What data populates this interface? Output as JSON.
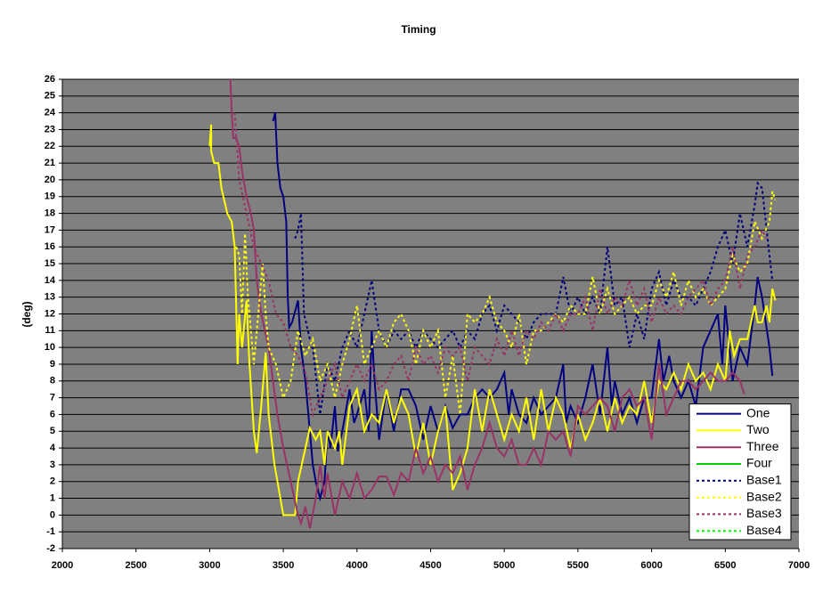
{
  "chart_data": {
    "type": "line",
    "title": "Timing",
    "ylabel": "(deg)",
    "xlim": [
      2000,
      7000
    ],
    "xticks": [
      2000,
      2500,
      3000,
      3500,
      4000,
      4500,
      5000,
      5500,
      6000,
      6500,
      7000
    ],
    "ylim": [
      -2,
      26
    ],
    "yticks": [
      -2,
      -1,
      0,
      1,
      2,
      3,
      4,
      5,
      6,
      7,
      8,
      9,
      10,
      11,
      12,
      13,
      14,
      15,
      16,
      17,
      18,
      19,
      20,
      21,
      22,
      23,
      24,
      25,
      26
    ],
    "grid": true,
    "legend": "lower-right",
    "series": [
      {
        "name": "One",
        "color": "#000080",
        "style": "solid",
        "x": [
          3430,
          3445,
          3460,
          3480,
          3500,
          3520,
          3530,
          3540,
          3560,
          3600,
          3620,
          3650,
          3680,
          3700,
          3720,
          3750,
          3780,
          3800,
          3820,
          3850,
          3870,
          3900,
          3950,
          3980,
          4000,
          4050,
          4080,
          4100,
          4120,
          4150,
          4200,
          4250,
          4300,
          4350,
          4400,
          4450,
          4500,
          4550,
          4600,
          4650,
          4700,
          4750,
          4800,
          4850,
          4900,
          4950,
          5000,
          5030,
          5050,
          5100,
          5150,
          5200,
          5250,
          5300,
          5350,
          5400,
          5420,
          5450,
          5500,
          5550,
          5600,
          5650,
          5700,
          5730,
          5750,
          5800,
          5850,
          5900,
          5950,
          6000,
          6050,
          6080,
          6120,
          6150,
          6200,
          6250,
          6300,
          6350,
          6400,
          6450,
          6480,
          6500,
          6550,
          6600,
          6650,
          6700,
          6720,
          6750,
          6800,
          6820
        ],
        "values": [
          23.5,
          24,
          21,
          19.5,
          19,
          17.5,
          13,
          11.2,
          11.5,
          12.8,
          10,
          8,
          5,
          3,
          2,
          1,
          2,
          5,
          4,
          6.5,
          3.8,
          5,
          7.5,
          5.5,
          6,
          7.5,
          5,
          11,
          8,
          4.5,
          7.5,
          5,
          7.5,
          7.5,
          6.5,
          4.5,
          6.5,
          5,
          6.5,
          5.2,
          6,
          6,
          7,
          7.5,
          7,
          7.5,
          8.5,
          6,
          7.5,
          6,
          5.5,
          7,
          6,
          6.5,
          7,
          9,
          5.5,
          6.5,
          5.5,
          7,
          9,
          6,
          10,
          6.5,
          8,
          6,
          7,
          5.5,
          7,
          7,
          10.5,
          8,
          9.5,
          8,
          7,
          8,
          6.5,
          10,
          11,
          12,
          9,
          12.5,
          8,
          10,
          9,
          12.5,
          14.2,
          13,
          10,
          8.3
        ]
      },
      {
        "name": "Two",
        "color": "#ffff00",
        "style": "solid",
        "x": [
          3000,
          3010,
          3010,
          3030,
          3060,
          3080,
          3120,
          3150,
          3170,
          3190,
          3200,
          3220,
          3250,
          3270,
          3300,
          3320,
          3350,
          3380,
          3400,
          3440,
          3460,
          3500,
          3580,
          3600,
          3650,
          3680,
          3720,
          3750,
          3780,
          3800,
          3850,
          3880,
          3900,
          3950,
          4000,
          4050,
          4100,
          4150,
          4200,
          4250,
          4300,
          4350,
          4400,
          4450,
          4500,
          4550,
          4600,
          4650,
          4700,
          4750,
          4800,
          4850,
          4900,
          4950,
          5000,
          5050,
          5100,
          5150,
          5200,
          5250,
          5300,
          5350,
          5400,
          5450,
          5500,
          5550,
          5600,
          5650,
          5700,
          5750,
          5800,
          5850,
          5900,
          5950,
          6000,
          6050,
          6100,
          6150,
          6200,
          6250,
          6300,
          6350,
          6400,
          6450,
          6500,
          6530,
          6560,
          6600,
          6650,
          6700,
          6720,
          6750,
          6780,
          6800,
          6820,
          6840
        ],
        "values": [
          22,
          23.3,
          21.7,
          21,
          21,
          19.5,
          18,
          17.5,
          16,
          9,
          12,
          10,
          12.8,
          9,
          5,
          3.7,
          6.5,
          9.7,
          6,
          3,
          2,
          0,
          0,
          2,
          4,
          5.2,
          4.5,
          5,
          3,
          5,
          4,
          5,
          3,
          6.5,
          7.5,
          5,
          6,
          5.5,
          7.5,
          5.5,
          7,
          6,
          3.5,
          5.5,
          3,
          5,
          6.5,
          1.5,
          2.5,
          4,
          7.5,
          5,
          7.5,
          6,
          4.5,
          6,
          5,
          7,
          4.5,
          7.5,
          5,
          7,
          6,
          4,
          6,
          4.5,
          5.5,
          7,
          5,
          7,
          5.5,
          6.5,
          6,
          8,
          5.5,
          8,
          7.5,
          8.5,
          7.5,
          9,
          8,
          8.5,
          7.5,
          9,
          8,
          11,
          9.5,
          10.5,
          10.5,
          12.5,
          11.5,
          11.5,
          12.5,
          11.5,
          13.5,
          12.8
        ]
      },
      {
        "name": "Three",
        "color": "#993366",
        "style": "solid",
        "x": [
          3140,
          3150,
          3160,
          3180,
          3200,
          3220,
          3250,
          3280,
          3300,
          3320,
          3350,
          3400,
          3430,
          3460,
          3500,
          3550,
          3600,
          3620,
          3650,
          3680,
          3720,
          3750,
          3780,
          3800,
          3850,
          3900,
          3950,
          4000,
          4050,
          4100,
          4150,
          4200,
          4250,
          4300,
          4350,
          4400,
          4450,
          4500,
          4550,
          4600,
          4650,
          4700,
          4750,
          4800,
          4850,
          4900,
          4950,
          5000,
          5050,
          5100,
          5150,
          5200,
          5250,
          5300,
          5350,
          5400,
          5450,
          5500,
          5550,
          5600,
          5650,
          5700,
          5750,
          5800,
          5850,
          5900,
          5950,
          6000,
          6050,
          6100,
          6150,
          6200,
          6250,
          6300,
          6350,
          6400,
          6450,
          6500,
          6550,
          6600,
          6630
        ],
        "values": [
          26,
          24,
          22.5,
          22.5,
          22,
          20.5,
          19,
          18,
          17,
          14,
          12,
          10,
          8,
          6,
          4,
          2,
          0,
          -0.5,
          0.5,
          -0.8,
          1,
          3,
          1,
          2.5,
          0,
          2,
          1,
          2.5,
          1,
          1.5,
          2.3,
          2.3,
          1.2,
          2.5,
          2,
          4,
          2.5,
          3.5,
          2,
          3,
          2.5,
          3.5,
          1.5,
          3,
          4,
          5.5,
          4,
          3.5,
          4.5,
          3,
          3,
          4,
          3,
          5,
          4.5,
          5,
          3.5,
          6.5,
          6,
          6.5,
          7,
          6.5,
          5,
          7,
          7.5,
          6.5,
          7,
          4.5,
          9,
          6,
          7,
          8,
          8,
          7.5,
          8,
          8.5,
          8,
          8,
          8.5,
          8,
          7.2
        ]
      },
      {
        "name": "Four",
        "color": "#00cc00",
        "style": "solid",
        "x": [],
        "values": []
      },
      {
        "name": "Base1",
        "color": "#000080",
        "style": "dotted",
        "x": [
          3580,
          3600,
          3620,
          3640,
          3680,
          3700,
          3750,
          3800,
          3850,
          3900,
          3950,
          4000,
          4050,
          4100,
          4150,
          4200,
          4250,
          4300,
          4350,
          4400,
          4450,
          4500,
          4550,
          4600,
          4650,
          4700,
          4750,
          4800,
          4850,
          4900,
          4950,
          5000,
          5050,
          5100,
          5150,
          5200,
          5250,
          5300,
          5350,
          5400,
          5450,
          5500,
          5550,
          5600,
          5650,
          5700,
          5750,
          5800,
          5850,
          5900,
          5950,
          6000,
          6050,
          6100,
          6150,
          6200,
          6250,
          6300,
          6350,
          6400,
          6450,
          6500,
          6550,
          6600,
          6650,
          6700,
          6720,
          6750,
          6800,
          6820
        ],
        "values": [
          16.5,
          17,
          18,
          12,
          10.5,
          10,
          6,
          9,
          8,
          10,
          11,
          10,
          12,
          14,
          11,
          10,
          11,
          10.5,
          11,
          10,
          11,
          10.5,
          10,
          10.5,
          11,
          10,
          11,
          10.5,
          12,
          12.5,
          11,
          12.5,
          12,
          11.5,
          10.5,
          11.5,
          12,
          12,
          12,
          14.2,
          12,
          13,
          12,
          13,
          12,
          16,
          12.5,
          13,
          10,
          12,
          10.5,
          13.5,
          14.5,
          12.5,
          14,
          13,
          13,
          12.5,
          13.5,
          14.5,
          16,
          17,
          15,
          18,
          16,
          18.5,
          19.8,
          19.5,
          15.5,
          14
        ]
      },
      {
        "name": "Base2",
        "color": "#ffff00",
        "style": "dotted",
        "x": [
          3180,
          3200,
          3220,
          3240,
          3260,
          3300,
          3330,
          3360,
          3380,
          3400,
          3450,
          3500,
          3550,
          3600,
          3650,
          3700,
          3750,
          3800,
          3850,
          3900,
          3950,
          4000,
          4050,
          4100,
          4150,
          4200,
          4250,
          4300,
          4350,
          4400,
          4450,
          4500,
          4550,
          4600,
          4650,
          4700,
          4750,
          4800,
          4850,
          4900,
          4950,
          5000,
          5050,
          5100,
          5150,
          5200,
          5250,
          5300,
          5350,
          5400,
          5450,
          5500,
          5550,
          5600,
          5650,
          5700,
          5750,
          5800,
          5850,
          5900,
          5950,
          6000,
          6050,
          6100,
          6150,
          6200,
          6250,
          6300,
          6350,
          6400,
          6450,
          6500,
          6550,
          6600,
          6650,
          6700,
          6750,
          6800,
          6820,
          6840
        ],
        "values": [
          16,
          15.5,
          12,
          16.8,
          13,
          9,
          12,
          15,
          12,
          10,
          9,
          7,
          8,
          11,
          9.5,
          10.5,
          8,
          9,
          7,
          9,
          10.5,
          12.5,
          9,
          10,
          11,
          10,
          11.5,
          12,
          11,
          9,
          11,
          10,
          11,
          7,
          9.5,
          6,
          12,
          11.5,
          12,
          13,
          11.5,
          11,
          10,
          12,
          9,
          11,
          11,
          11.5,
          12,
          11.5,
          12.5,
          12,
          12,
          14.2,
          12,
          13.5,
          12,
          12.5,
          13,
          12,
          12.5,
          12.5,
          14,
          13,
          14.5,
          12.5,
          14,
          13,
          13.5,
          12.5,
          13,
          13.5,
          15.5,
          14.5,
          15,
          17.5,
          16.5,
          17.5,
          19.3,
          18.8
        ]
      },
      {
        "name": "Base3",
        "color": "#993366",
        "style": "dotted",
        "x": [
          3170,
          3200,
          3250,
          3300,
          3350,
          3400,
          3450,
          3500,
          3550,
          3600,
          3650,
          3700,
          3750,
          3800,
          3850,
          3900,
          3950,
          4000,
          4050,
          4100,
          4150,
          4200,
          4250,
          4300,
          4350,
          4400,
          4450,
          4500,
          4550,
          4600,
          4650,
          4700,
          4750,
          4800,
          4850,
          4900,
          4950,
          5000,
          5050,
          5100,
          5150,
          5200,
          5250,
          5300,
          5350,
          5400,
          5450,
          5500,
          5550,
          5600,
          5650,
          5700,
          5750,
          5800,
          5850,
          5900,
          5950,
          6000,
          6050,
          6100,
          6150,
          6200,
          6250,
          6300,
          6350,
          6400,
          6450,
          6500,
          6550,
          6600,
          6650,
          6700,
          6750,
          6780
        ],
        "values": [
          24,
          20,
          18,
          16,
          15,
          14,
          12,
          11.5,
          10,
          9.5,
          8.5,
          6,
          7,
          8,
          9,
          7,
          8,
          9,
          8,
          9,
          7.5,
          8,
          9,
          9.5,
          8,
          10,
          9,
          9.5,
          8.5,
          10,
          9.5,
          10,
          8,
          10,
          9.5,
          9,
          10.5,
          9.5,
          11,
          9.5,
          11,
          10.5,
          11.5,
          11,
          12,
          11,
          12,
          12,
          13,
          11,
          13.5,
          12,
          13,
          12.5,
          14,
          12.5,
          13.5,
          11.5,
          13,
          12,
          12.5,
          12,
          13,
          13.5,
          14,
          12.5,
          13.5,
          14,
          16,
          13.5,
          15.5,
          16,
          17,
          16.5
        ]
      },
      {
        "name": "Base4",
        "color": "#00ff00",
        "style": "dotted",
        "x": [],
        "values": []
      }
    ]
  }
}
